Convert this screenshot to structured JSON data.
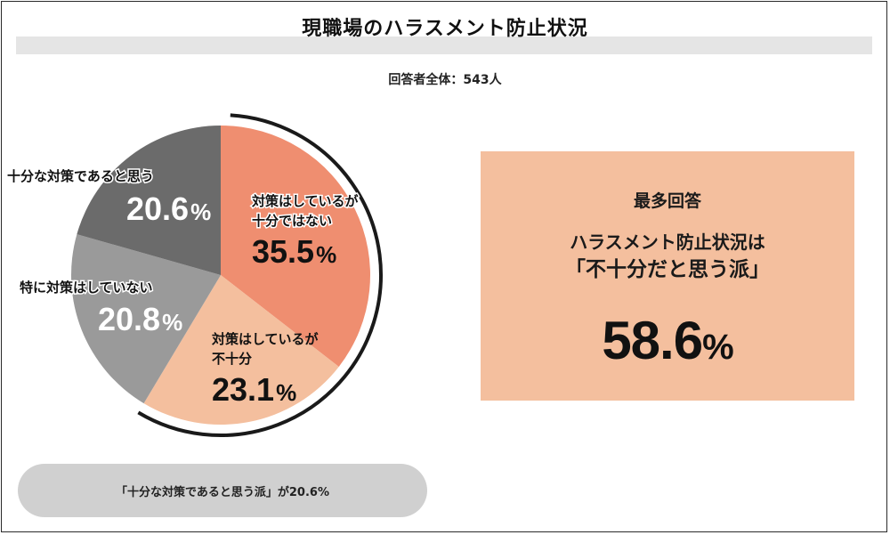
{
  "header": {
    "title": "現職場のハラスメント防止状況",
    "respondents": "回答者全体：543人"
  },
  "colors": {
    "slice_insufficient_but_doing": "#ef8e70",
    "slice_doing_but_short": "#f4bf9e",
    "slice_not_doing": "#9a9a9a",
    "slice_sufficient": "#6b6b6b",
    "arc": "#1a1a1a",
    "highlight_box": "#f4bf9e",
    "summary_pill": "#d0d0d0"
  },
  "chart_data": {
    "type": "pie",
    "slices": [
      {
        "label_lines": [
          "対策はしているが",
          "十分ではない"
        ],
        "value": 35.5,
        "display": "35.5%"
      },
      {
        "label_lines": [
          "対策はしているが",
          "不十分"
        ],
        "value": 23.1,
        "display": "23.1%"
      },
      {
        "label_lines": [
          "特に対策はしていない"
        ],
        "value": 20.8,
        "display": "20.8%"
      },
      {
        "label_lines": [
          "十分な対策であると思う"
        ],
        "value": 20.6,
        "display": "20.6%"
      }
    ]
  },
  "highlight": {
    "label": "最多回答",
    "line1": "ハラスメント防止状況は",
    "line2": "「不十分だと思う派」",
    "value": "58.6",
    "unit": "%"
  },
  "summary": {
    "text": "「十分な対策であると思う派」が20.6%"
  }
}
